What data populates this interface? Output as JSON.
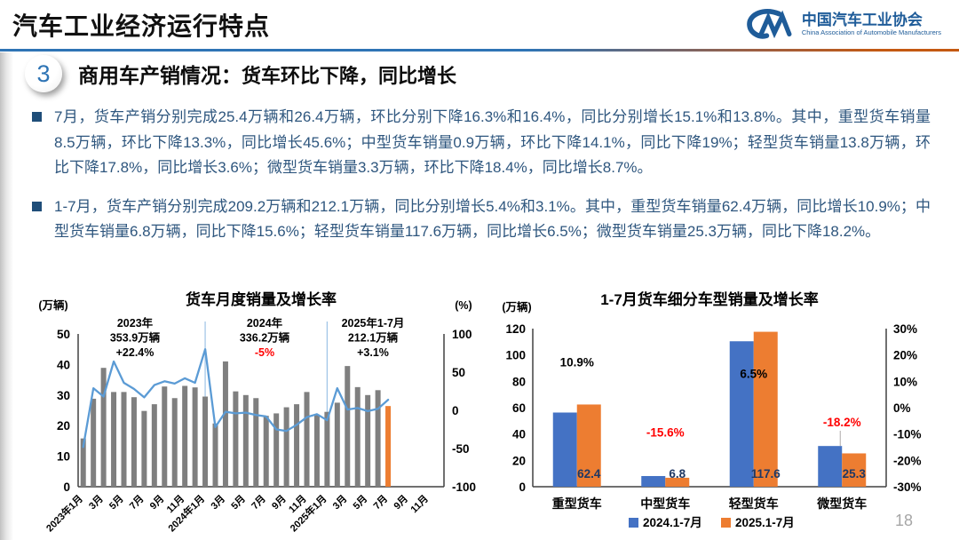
{
  "header": {
    "title": "汽车工业经济运行特点",
    "logo": {
      "org_cn": "中国汽车工业协会",
      "org_en": "China Association of Automobile Manufacturers"
    }
  },
  "section": {
    "number": "3",
    "heading_prefix": "商用车产销情况：",
    "heading_rest": "货车环比下降，同比增长"
  },
  "bullets": [
    "7月，货车产销分别完成25.4万辆和26.4万辆，环比分别下降16.3%和16.4%，同比分别增长15.1%和13.8%。其中，重型货车销量8.5万辆，环比下降13.3%，同比增长45.6%；中型货车销量0.9万辆，环比下降14.1%，同比下降19%；轻型货车销量13.8万辆，环比下降17.8%，同比增长3.6%；微型货车销量3.3万辆，环比下降18.4%，同比增长8.7%。",
    "1-7月，货车产销分别完成209.2万辆和212.1万辆，同比分别增长5.4%和3.1%。其中，重型货车销量62.4万辆，同比增长10.9%；中型货车销量6.8万辆，同比下降15.6%；轻型货车销量117.6万辆，同比增长6.5%；微型货车销量25.3万辆，同比下降18.2%。"
  ],
  "page_number": "18",
  "colors": {
    "accent_blue": "#2E74B5",
    "accent_orange": "#C45911",
    "text_blue": "#2E567E",
    "logo_blue": "#1F5C99",
    "negative_red": "#FF0000"
  },
  "chart_data": [
    {
      "type": "combo-bar-line",
      "title": "货车月度销量及增长率",
      "left_axis_unit": "(万辆)",
      "right_axis_unit": "(%)",
      "left_ylim": [
        0,
        50
      ],
      "left_ticks": [
        0,
        10,
        20,
        30,
        40,
        50
      ],
      "right_ylim": [
        -100,
        100
      ],
      "right_ticks": [
        -100,
        -50,
        0,
        50,
        100
      ],
      "months_total": 36,
      "x_tick_labels": [
        "2023年1月",
        "3月",
        "5月",
        "7月",
        "9月",
        "11月",
        "2024年1月",
        "3月",
        "5月",
        "7月",
        "9月",
        "11月",
        "2025年1月",
        "3月",
        "5月",
        "7月",
        "9月",
        "11月"
      ],
      "bar_series_name": "月度销量(万辆)",
      "bar_values": [
        15.8,
        28.8,
        38.9,
        31.0,
        31.0,
        29.3,
        24.8,
        27.0,
        32.8,
        29.0,
        33.0,
        32.5,
        29.5,
        20.7,
        41.0,
        31.2,
        30.0,
        29.0,
        23.2,
        24.0,
        26.0,
        27.0,
        31.0,
        23.6,
        24.5,
        27.5,
        39.5,
        32.6,
        30.0,
        31.6,
        26.4
      ],
      "line_series_name": "同比增长率(%)",
      "line_values": [
        -48,
        29,
        18,
        64,
        36,
        28,
        17,
        33,
        38,
        35,
        42,
        36,
        80,
        -22,
        -2,
        -4,
        -3,
        -6,
        -8,
        -25,
        -27,
        -19,
        -9,
        -5,
        -13,
        29,
        1,
        3,
        -1,
        2,
        13.8
      ],
      "bar_color": "#7F7F7F",
      "current_month_bar_color": "#ED7D31",
      "line_color": "#5B9BD5",
      "divider_month_indices": [
        12,
        24
      ],
      "divider_color": "#9DC3E6",
      "annotations": [
        {
          "lines": [
            "2023年",
            "353.9万辆",
            "+22.4%"
          ],
          "line_colors": [
            "#000000",
            "#000000",
            "#000000"
          ]
        },
        {
          "lines": [
            "2024年",
            "336.2万辆",
            "-5%"
          ],
          "line_colors": [
            "#000000",
            "#000000",
            "#FF0000"
          ]
        },
        {
          "lines": [
            "2025年1-7月",
            "212.1万辆",
            "+3.1%"
          ],
          "line_colors": [
            "#000000",
            "#000000",
            "#000000"
          ]
        }
      ]
    },
    {
      "type": "grouped-bar",
      "title": "1-7月货车细分车型销量及增长率",
      "left_axis_unit": "(万辆)",
      "left_ylim": [
        0,
        120
      ],
      "left_ticks": [
        0,
        20,
        40,
        60,
        80,
        100,
        120
      ],
      "right_tick_labels": [
        "30%",
        "20%",
        "10%",
        "0%",
        "-10%",
        "-20%",
        "-30%"
      ],
      "right_tick_values": [
        30,
        20,
        10,
        0,
        -10,
        -20,
        -30
      ],
      "categories": [
        "重型货车",
        "中型货车",
        "轻型货车",
        "微型货车"
      ],
      "series": [
        {
          "name": "2024.1-7月",
          "color": "#4472C4",
          "values": [
            56.3,
            8.1,
            110.4,
            30.9
          ]
        },
        {
          "name": "2025.1-7月",
          "color": "#ED7D31",
          "values": [
            62.4,
            6.8,
            117.6,
            25.3
          ]
        }
      ],
      "bar_value_labels": [
        "62.4",
        "6.8",
        "117.6",
        "25.3"
      ],
      "growth_labels": [
        {
          "text": "10.9%",
          "value": 10.9,
          "color": "#000000"
        },
        {
          "text": "-15.6%",
          "value": -15.6,
          "color": "#FF0000"
        },
        {
          "text": "6.5%",
          "value": 6.5,
          "color": "#000000"
        },
        {
          "text": "-18.2%",
          "value": -18.2,
          "color": "#FF0000"
        }
      ]
    }
  ]
}
